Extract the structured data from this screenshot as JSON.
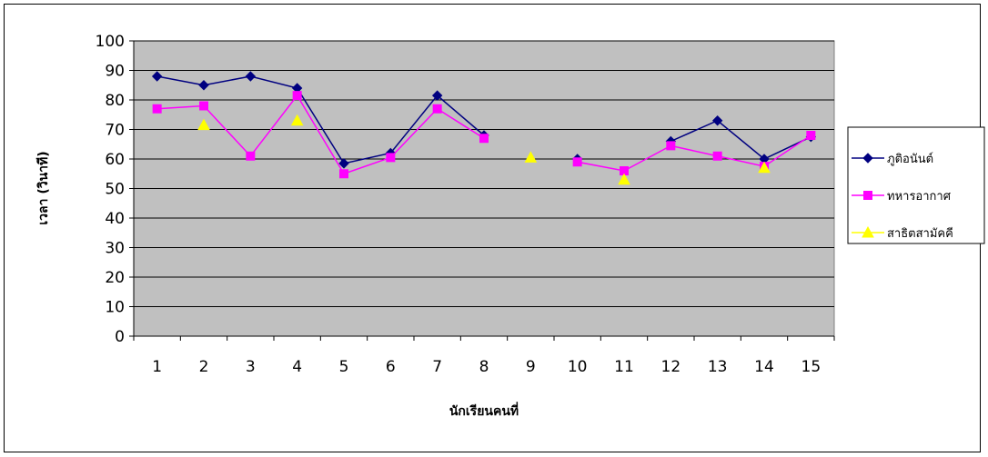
{
  "chart_data": {
    "type": "line",
    "xlabel": "นักเรียนคนที่",
    "ylabel": "เวลา (วินาที)",
    "categories": [
      "1",
      "2",
      "3",
      "4",
      "5",
      "6",
      "7",
      "8",
      "9",
      "10",
      "11",
      "12",
      "13",
      "14",
      "15"
    ],
    "ylim": [
      0,
      100
    ],
    "yticks": [
      0,
      10,
      20,
      30,
      40,
      50,
      60,
      70,
      80,
      90,
      100
    ],
    "grid": true,
    "plot_background": "#c0c0c0",
    "legend_position": "right",
    "series": [
      {
        "name": "ภูติอนันต์",
        "color": "#000080",
        "marker": "diamond",
        "values": [
          88,
          85,
          88,
          84,
          58.5,
          62,
          81.5,
          68,
          null,
          60,
          null,
          66,
          73,
          60,
          67.5
        ]
      },
      {
        "name": "ทหารอากาศ",
        "color": "#ff00ff",
        "marker": "square",
        "values": [
          77,
          78,
          61,
          81.5,
          55,
          60.5,
          77,
          67,
          null,
          59,
          56,
          64.5,
          61,
          57.5,
          68
        ]
      },
      {
        "name": "สาธิตสามัคคี",
        "color": "#ffff00",
        "marker": "triangle",
        "values": [
          null,
          71.5,
          null,
          73,
          null,
          null,
          null,
          null,
          60.5,
          null,
          53,
          null,
          null,
          57,
          null
        ]
      }
    ]
  }
}
